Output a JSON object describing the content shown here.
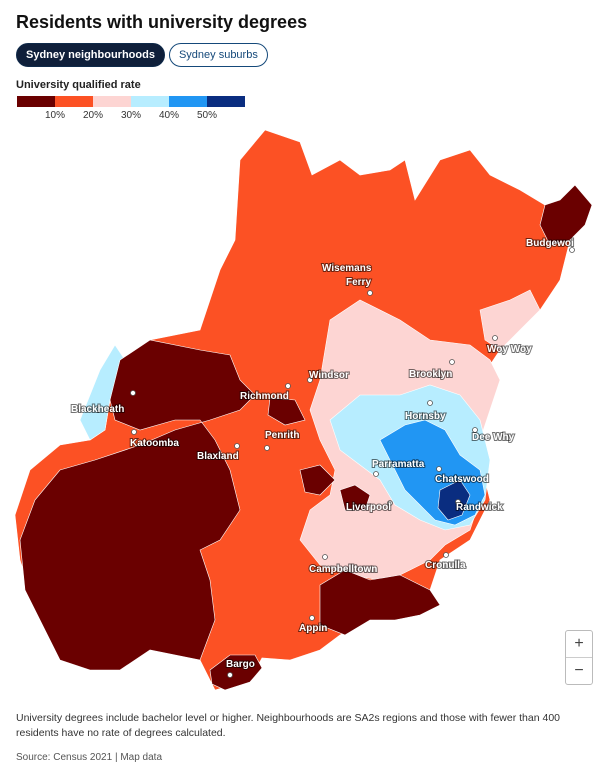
{
  "title": "Residents with university degrees",
  "tabs": [
    {
      "label": "Sydney neighbourhoods",
      "active": true
    },
    {
      "label": "Sydney suburbs",
      "active": false
    }
  ],
  "legend": {
    "title": "University qualified rate",
    "colors": [
      "#6a0000",
      "#fc5124",
      "#fdd5d3",
      "#b7edff",
      "#2196f3",
      "#0a2d80"
    ],
    "ticks": [
      "10%",
      "20%",
      "30%",
      "40%",
      "50%"
    ]
  },
  "places": [
    "Budgewoi",
    "Wisemans",
    "Ferry",
    "Woy Woy",
    "Windsor",
    "Brooklyn",
    "Richmond",
    "Blackheath",
    "Hornsby",
    "Katoomba",
    "Penrith",
    "Dee Why",
    "Blaxland",
    "Parramatta",
    "Chatswood",
    "Liverpool",
    "Randwick",
    "Cronulla",
    "Campbelltown",
    "Appin",
    "Bargo"
  ],
  "zoom": {
    "in": "+",
    "out": "−"
  },
  "footnote": "University degrees include bachelor level or higher. Neighbourhoods are SA2s regions and those with fewer than 400 residents have no rate of degrees calculated.",
  "source": "Source: Census 2021 | Map data"
}
